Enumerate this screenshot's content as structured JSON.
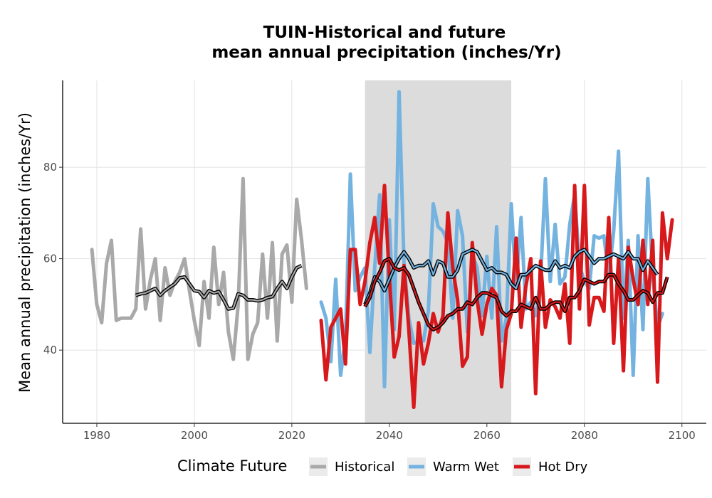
{
  "chart_data": {
    "type": "line",
    "title_line1": "TUIN-Historical and future",
    "title_line2": "mean annual precipitation (inches/Yr)",
    "xlabel": "",
    "ylabel": "Mean annual precipitation (inches/Yr)",
    "xlim": [
      1973,
      2105
    ],
    "ylim": [
      24,
      99
    ],
    "x_ticks": [
      1980,
      2000,
      2020,
      2040,
      2060,
      2080,
      2100
    ],
    "y_ticks": [
      40,
      60,
      80
    ],
    "grid": true,
    "shaded_period": [
      2035,
      2065
    ],
    "legend": {
      "title": "Climate Future",
      "position": "bottom",
      "items": [
        "Historical",
        "Warm Wet",
        "Hot Dry"
      ]
    },
    "series": [
      {
        "name": "Historical",
        "color": "#a9a9a9",
        "x_start": 1979,
        "values": [
          62,
          50,
          46,
          59,
          64,
          46.5,
          47,
          47,
          47,
          49,
          66.5,
          49,
          55.5,
          60,
          46.5,
          58,
          52,
          55,
          57,
          60,
          53,
          46.5,
          41,
          55,
          47,
          62.5,
          50,
          57,
          44,
          38,
          50,
          77.5,
          38,
          43.5,
          46,
          61,
          47,
          63.5,
          42,
          61,
          63,
          50.5,
          73,
          64,
          53.5
        ],
        "moving_average": {
          "x_start": 1988,
          "values": [
            52,
            52.3,
            52.5,
            53,
            53.5,
            52,
            53,
            53.8,
            54.5,
            55.8,
            56,
            54.5,
            53,
            52.8,
            51.5,
            53,
            52.5,
            52.8,
            51,
            49,
            49.2,
            52.3,
            52,
            51,
            51,
            50.8,
            51,
            51.5,
            51.7,
            53.5,
            55,
            53.5,
            56,
            58,
            58.5
          ]
        }
      },
      {
        "name": "Warm Wet",
        "color": "#74b3e0",
        "x_start": 2026,
        "values": [
          50.5,
          47,
          37.5,
          55.5,
          34.5,
          42.5,
          78.5,
          53,
          56,
          58,
          39.5,
          58,
          74,
          32,
          68.5,
          44.5,
          96.5,
          59,
          47,
          41.5,
          42,
          42,
          48.5,
          72,
          67,
          66,
          63.5,
          47,
          70.5,
          65,
          44,
          61,
          58,
          47.5,
          60.5,
          47,
          67,
          42,
          47,
          72,
          53.5,
          69,
          49,
          50.5,
          47.5,
          55.5,
          77.5,
          55,
          67.5,
          54.5,
          56,
          67.5,
          74,
          58.5,
          55,
          53.5,
          65,
          64.5,
          65,
          56,
          66,
          83.5,
          47,
          64,
          34.5,
          65,
          44.5,
          77.5,
          56.5,
          45,
          48
        ],
        "moving_average": {
          "x_start": 2035,
          "values": [
            50,
            52.5,
            56,
            55,
            53,
            55.5,
            58,
            60,
            61.5,
            60,
            58,
            58.5,
            58.5,
            59.5,
            56.5,
            59.5,
            59,
            56,
            56,
            57.5,
            61,
            61.5,
            62,
            61.5,
            59.5,
            57.5,
            58,
            57,
            57,
            56.5,
            54.5,
            53.5,
            56.5,
            56.5,
            57.5,
            58.5,
            58,
            57.5,
            57.5,
            59.5,
            58,
            58.5,
            58,
            60.5,
            61.5,
            62,
            60.5,
            59,
            60,
            60,
            60.5,
            61,
            60.5,
            60,
            61.5,
            60,
            60,
            57.5,
            59.5,
            58,
            56.5
          ]
        }
      },
      {
        "name": "Hot Dry",
        "color": "#d7191c",
        "x_start": 2026,
        "values": [
          46.5,
          33.5,
          45,
          47,
          49,
          37,
          62,
          62,
          50,
          55,
          63.5,
          69,
          59,
          76,
          56,
          38.5,
          43,
          58.5,
          44.5,
          27.5,
          46,
          37,
          41.5,
          48,
          44,
          47.5,
          70,
          58,
          51,
          36.5,
          38.5,
          63.5,
          51,
          43.5,
          50,
          53.5,
          52,
          32,
          44.5,
          48,
          64.5,
          45,
          54,
          60,
          30.5,
          59.5,
          45,
          51,
          49.5,
          47,
          54.5,
          41.5,
          76,
          49,
          76,
          45.5,
          51.5,
          51.5,
          48.5,
          69,
          41.5,
          60,
          35.5,
          62.5,
          55.5,
          50,
          64,
          50,
          64,
          33,
          70,
          60,
          68.5
        ],
        "moving_average": {
          "x_start": 2035,
          "values": [
            49.5,
            51.5,
            55,
            57,
            59.5,
            60,
            58,
            57.5,
            58,
            56.5,
            53.5,
            50.5,
            48,
            45.5,
            44.5,
            45,
            46,
            47.5,
            48,
            49,
            49,
            50.5,
            50,
            51.5,
            52.5,
            52.5,
            52,
            51.5,
            48.5,
            47.5,
            48.5,
            48.5,
            50,
            49.5,
            49,
            51.5,
            49,
            49,
            50,
            50.5,
            50.5,
            48.5,
            51.5,
            51.5,
            53,
            55.5,
            55,
            54.5,
            55,
            55,
            56.5,
            56.5,
            54.5,
            53,
            51,
            51,
            52,
            53,
            52.5,
            50.5,
            52.5,
            52.5,
            56
          ]
        }
      }
    ]
  }
}
